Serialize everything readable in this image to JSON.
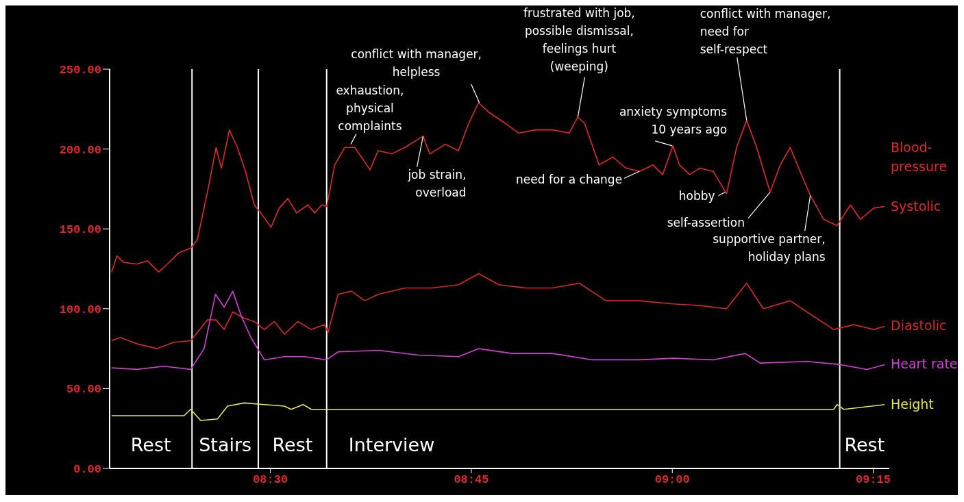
{
  "chart_data": {
    "type": "line",
    "xlim": [
      8.3,
      9.27
    ],
    "ylim": [
      0,
      250
    ],
    "xticks": [
      {
        "value": 8.5,
        "label": "08:30"
      },
      {
        "value": 8.75,
        "label": "08:45"
      },
      {
        "value": 9.0,
        "label": "09:00"
      },
      {
        "value": 9.25,
        "label": "09:15"
      }
    ],
    "yticks": [
      {
        "value": 0,
        "label": "0.00"
      },
      {
        "value": 50,
        "label": "50.00"
      },
      {
        "value": 100,
        "label": "100.00"
      },
      {
        "value": 150,
        "label": "150.00"
      },
      {
        "value": 200,
        "label": "200.00"
      },
      {
        "value": 250,
        "label": "250.00"
      }
    ],
    "grid": false,
    "legend": false,
    "marker": "none",
    "line_style": "solid",
    "series": [
      {
        "name": "Systolic",
        "color": "#e02a2a",
        "x": [
          8.3025,
          8.309,
          8.3175,
          8.334,
          8.347,
          8.361,
          8.372,
          8.386,
          8.401,
          8.409,
          8.4217,
          8.4325,
          8.439,
          8.449,
          8.459,
          8.469,
          8.48,
          8.488,
          8.5008,
          8.511,
          8.5217,
          8.5325,
          8.5467,
          8.555,
          8.564,
          8.57,
          8.58,
          8.5925,
          8.605,
          8.624,
          8.634,
          8.651,
          8.6675,
          8.69,
          8.6983,
          8.7175,
          8.734,
          8.7467,
          8.759,
          8.7717,
          8.7925,
          8.809,
          8.83,
          8.8508,
          8.8717,
          8.8825,
          8.891,
          8.909,
          8.926,
          8.9425,
          8.959,
          8.976,
          8.988,
          9.0008,
          9.009,
          9.0217,
          9.034,
          9.051,
          9.0675,
          9.08,
          9.0925,
          9.105,
          9.1217,
          9.1342,
          9.1467,
          9.159,
          9.1717,
          9.1883,
          9.205,
          9.2217,
          9.234,
          9.2508,
          9.264
        ],
        "values": [
          123,
          133,
          129,
          128,
          130,
          123,
          128,
          135,
          138,
          143,
          173,
          201,
          188,
          212,
          201,
          186,
          165,
          160,
          151,
          163,
          169,
          160,
          165,
          160,
          165,
          164,
          190,
          201,
          201,
          187,
          199,
          197,
          201,
          208,
          197,
          203,
          199,
          216,
          229,
          223,
          216,
          210,
          212,
          212,
          210,
          220,
          216,
          190,
          195,
          188,
          186,
          190,
          184,
          202,
          190,
          184,
          188,
          186,
          172,
          201,
          218,
          201,
          173,
          190,
          201,
          186,
          171,
          156,
          152,
          165,
          156,
          163,
          164
        ]
      },
      {
        "name": "Diastolic",
        "color": "#d42a2a",
        "x": [
          8.3025,
          8.3133,
          8.3342,
          8.3592,
          8.38,
          8.4008,
          8.4217,
          8.4325,
          8.4425,
          8.4533,
          8.4675,
          8.48,
          8.4925,
          8.505,
          8.5175,
          8.5342,
          8.5508,
          8.5675,
          8.5717,
          8.5842,
          8.6008,
          8.6175,
          8.6342,
          8.6675,
          8.7008,
          8.7342,
          8.7592,
          8.7842,
          8.8175,
          8.8508,
          8.8842,
          8.9175,
          8.9592,
          9.0008,
          9.0342,
          9.0675,
          9.0925,
          9.1133,
          9.1467,
          9.1675,
          9.2008,
          9.2258,
          9.2508,
          9.2642
        ],
        "values": [
          80,
          82,
          78,
          75,
          79,
          80,
          93,
          93,
          87,
          98,
          94,
          92,
          87,
          92,
          84,
          92,
          87,
          90,
          85,
          109,
          111,
          105,
          109,
          113,
          113,
          115,
          122,
          115,
          113,
          113,
          116,
          105,
          105,
          103,
          102,
          100,
          116,
          100,
          105,
          98,
          87,
          90,
          87,
          89
        ]
      },
      {
        "name": "Heart rate",
        "color": "#d43fd4",
        "x": [
          8.3025,
          8.3342,
          8.3675,
          8.4008,
          8.4175,
          8.4317,
          8.4425,
          8.4533,
          8.4633,
          8.4758,
          8.4925,
          8.5175,
          8.5425,
          8.57,
          8.5842,
          8.6342,
          8.6842,
          8.7342,
          8.7592,
          8.8008,
          8.8508,
          8.9008,
          8.9592,
          9.0008,
          9.0508,
          9.0908,
          9.1092,
          9.1675,
          9.2092,
          9.2425,
          9.2642
        ],
        "values": [
          63,
          62,
          64,
          62,
          75,
          109,
          101,
          111,
          96,
          82,
          68,
          70,
          70,
          68,
          73,
          74,
          71,
          70,
          75,
          72,
          72,
          68,
          68,
          69,
          68,
          72,
          66,
          67,
          65,
          62,
          65
        ]
      },
      {
        "name": "Height",
        "color": "#e6e64a",
        "x": [
          8.3025,
          8.3925,
          8.4008,
          8.4133,
          8.4342,
          8.4467,
          8.4675,
          8.4925,
          8.5175,
          8.5258,
          8.5408,
          8.5508,
          8.6675,
          8.7508,
          9.2008,
          9.205,
          9.2133,
          9.2642
        ],
        "values": [
          33,
          33,
          37,
          30,
          31,
          39,
          41,
          40,
          39,
          37,
          40,
          37,
          37,
          37,
          37,
          40,
          37,
          40
        ]
      }
    ],
    "ref_lines": [
      {
        "axis": "x",
        "value": 8.4025,
        "color": "#ffffff"
      },
      {
        "axis": "x",
        "value": 8.485,
        "color": "#ffffff"
      },
      {
        "axis": "x",
        "value": 8.57,
        "color": "#ffffff"
      },
      {
        "axis": "x",
        "value": 9.2083,
        "color": "#ffffff"
      }
    ],
    "annotations": [
      {
        "text": "exhaustion,\nphysical\ncomplaints",
        "x": 8.6,
        "y": 203
      },
      {
        "text": "conflict with manager,\nhelpless",
        "x": 8.76,
        "y": 229
      },
      {
        "text": "frustrated with job,\npossible dismissal,\nfeelings hurt\n(weeping)",
        "x": 8.8825,
        "y": 220
      },
      {
        "text": "anxiety symptoms\n10 years ago",
        "x": 9.0,
        "y": 202
      },
      {
        "text": "conflict with manager,\nneed for\nself-respect",
        "x": 9.0925,
        "y": 218
      },
      {
        "text": "job strain,\noverload",
        "x": 8.69,
        "y": 208
      },
      {
        "text": "need for a change",
        "x": 8.959,
        "y": 186
      },
      {
        "text": "hobby",
        "x": 9.066,
        "y": 173
      },
      {
        "text": "self-assertion",
        "x": 9.1217,
        "y": 173
      },
      {
        "text": "supportive partner,\nholiday plans",
        "x": 9.1717,
        "y": 171
      },
      "Rest",
      "Stairs",
      "Rest",
      "Interview",
      "Rest",
      "Blood-\npressure"
    ]
  }
}
